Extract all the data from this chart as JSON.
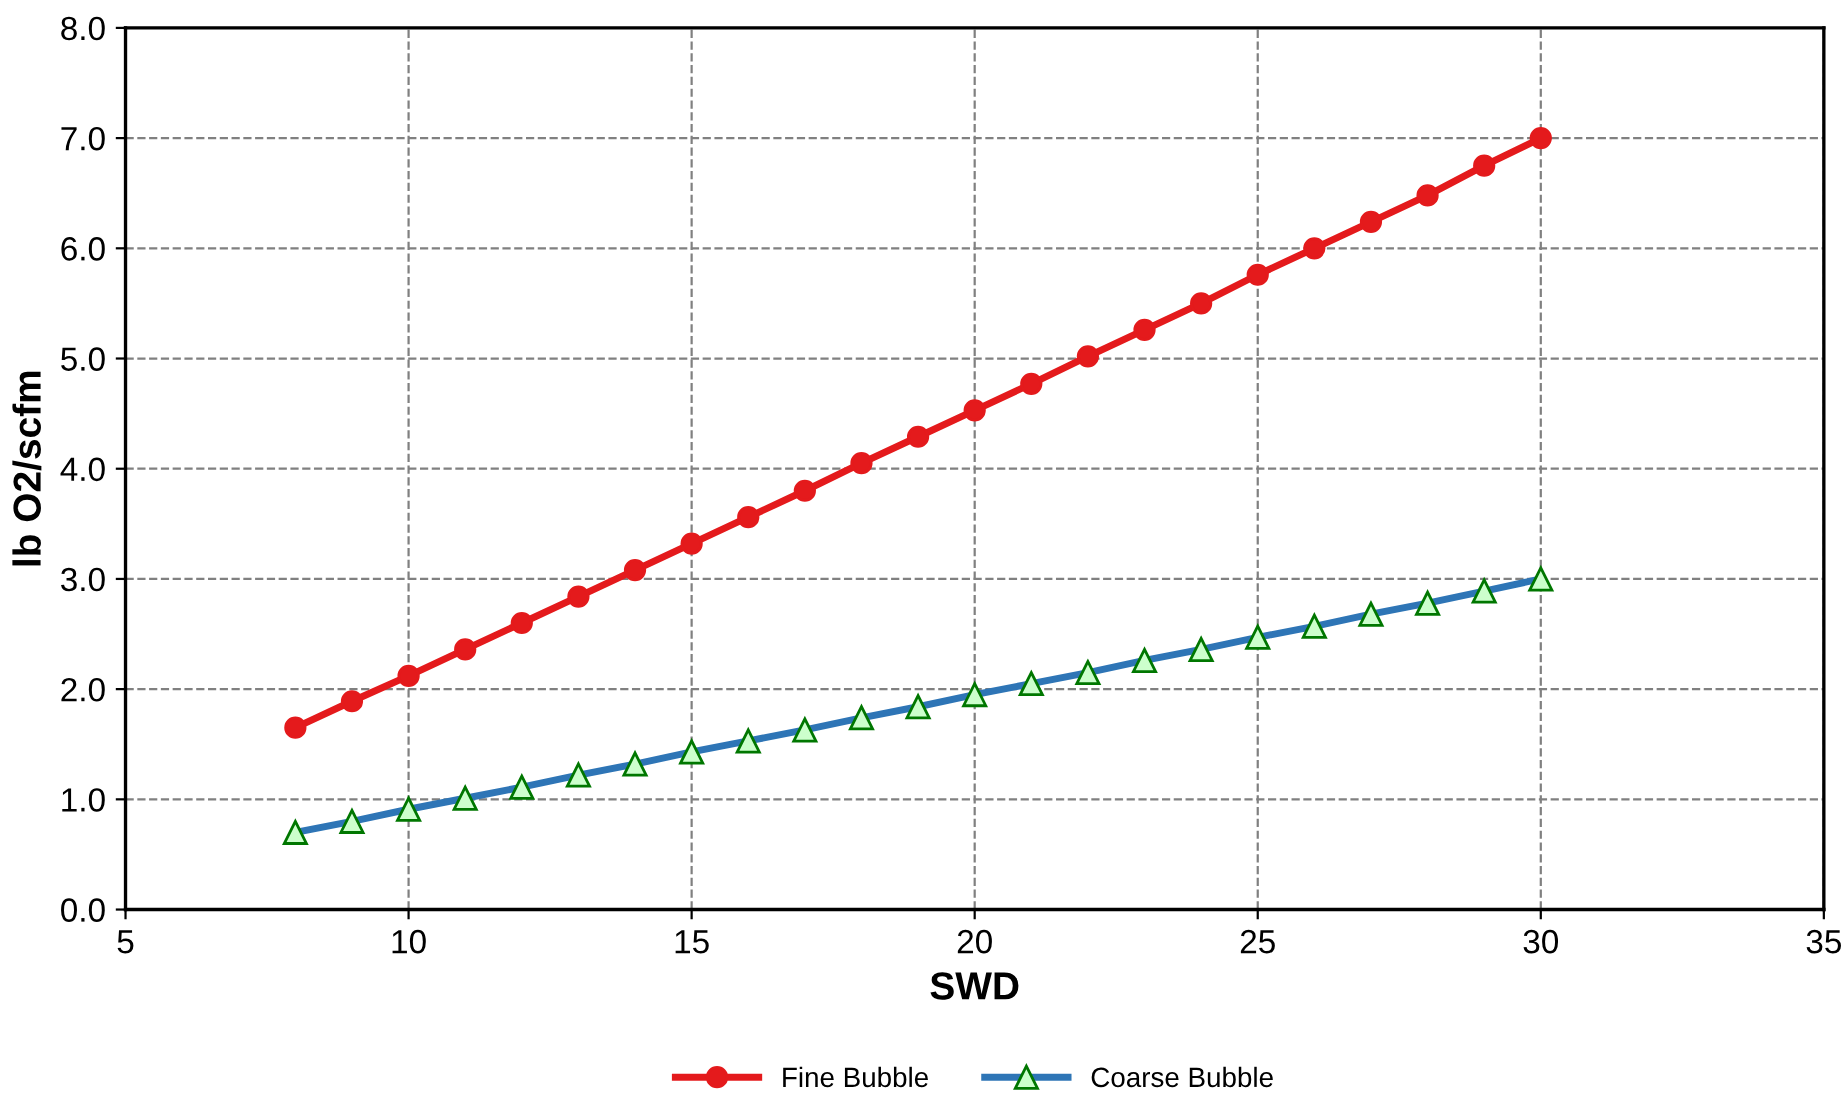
{
  "chart_data": {
    "type": "line",
    "xlabel": "SWD",
    "ylabel": "lb O2/scfm",
    "xlim": [
      5,
      35
    ],
    "xticks": [
      5,
      10,
      15,
      20,
      25,
      30,
      35
    ],
    "ylim": [
      0,
      8
    ],
    "yticks": [
      {
        "value": 0,
        "label": "0.0"
      },
      {
        "value": 1,
        "label": "1.0"
      },
      {
        "value": 2,
        "label": "2.0"
      },
      {
        "value": 3,
        "label": "3.0"
      },
      {
        "value": 4,
        "label": "4.0"
      },
      {
        "value": 5,
        "label": "5.0"
      },
      {
        "value": 6,
        "label": "6.0"
      },
      {
        "value": 7,
        "label": "7.0"
      },
      {
        "value": 8,
        "label": "8.0"
      }
    ],
    "grid": true,
    "legend": "bottom",
    "line_style": "solid",
    "x": [
      8,
      9,
      10,
      11,
      12,
      13,
      14,
      15,
      16,
      17,
      18,
      19,
      20,
      21,
      22,
      23,
      24,
      25,
      26,
      27,
      28,
      29,
      30
    ],
    "series": [
      {
        "name": "Fine Bubble",
        "color": "#e41a1c",
        "marker": "circle",
        "values": [
          1.65,
          1.89,
          2.12,
          2.36,
          2.6,
          2.84,
          3.08,
          3.32,
          3.56,
          3.8,
          4.05,
          4.29,
          4.53,
          4.77,
          5.02,
          5.26,
          5.5,
          5.76,
          6.0,
          6.24,
          6.48,
          6.75,
          7.0
        ]
      },
      {
        "name": "Coarse Bubble",
        "color": "#2e75b6",
        "marker": "triangle",
        "values": [
          0.7,
          0.8,
          0.91,
          1.01,
          1.11,
          1.22,
          1.32,
          1.43,
          1.53,
          1.63,
          1.74,
          1.84,
          1.95,
          2.05,
          2.15,
          2.26,
          2.36,
          2.47,
          2.57,
          2.68,
          2.78,
          2.89,
          3.0
        ]
      }
    ]
  }
}
